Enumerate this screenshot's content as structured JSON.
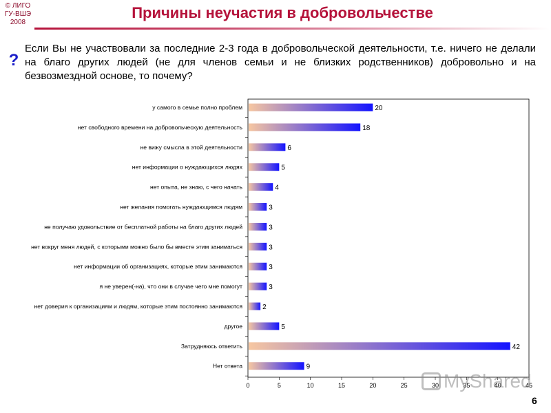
{
  "header": {
    "copyright": [
      "© ЛИГО",
      "ГУ-ВШЭ",
      "2008"
    ],
    "title": "Причины неучастия в добровольчестве"
  },
  "question": {
    "icon": "question-mark-icon",
    "text": "Если Вы не участвовали за последние 2-3 года в добровольческой деятельности, т.е. ничего не делали на благо других людей (не для членов семьи и не близких родственников) добровольно и на безвозмездной основе, то почему?"
  },
  "footer": {
    "slide_number": "6",
    "watermark": "MyShared"
  },
  "colors": {
    "title": "#b5123a",
    "bar_start": "#f7c7a1",
    "bar_end": "#1414ff",
    "question_icon": "#1c1fc9"
  },
  "chart_data": {
    "type": "bar",
    "orientation": "horizontal",
    "categories": [
      "у самого в семье полно проблем",
      "нет свободного времени на добровольческую деятельность",
      "не вижу смысла в этой деятельности",
      "нет информации о нуждающихся людях",
      "нет опыта, не знаю, с чего начать",
      "нет желания помогать нуждающимся людям",
      "не получаю удовольствие от бесплатной работы на благо других людей",
      "нет вокруг меня людей, с которыми можно было бы вместе этим заниматься",
      "нет информации об организациях, которые этим занимаются",
      "я не уверен(-на), что они в случае чего мне помогут",
      "нет доверия к организациям и людям, которые этим постоянно занимаются",
      "другое",
      "Затрудняюсь ответить",
      "Нет ответа"
    ],
    "values": [
      20,
      18,
      6,
      5,
      4,
      3,
      3,
      3,
      3,
      3,
      2,
      5,
      42,
      9
    ],
    "xlim": [
      0,
      45
    ],
    "xticks": [
      0,
      5,
      10,
      15,
      20,
      25,
      30,
      35,
      40,
      45
    ],
    "grid": false,
    "legend": "none"
  }
}
